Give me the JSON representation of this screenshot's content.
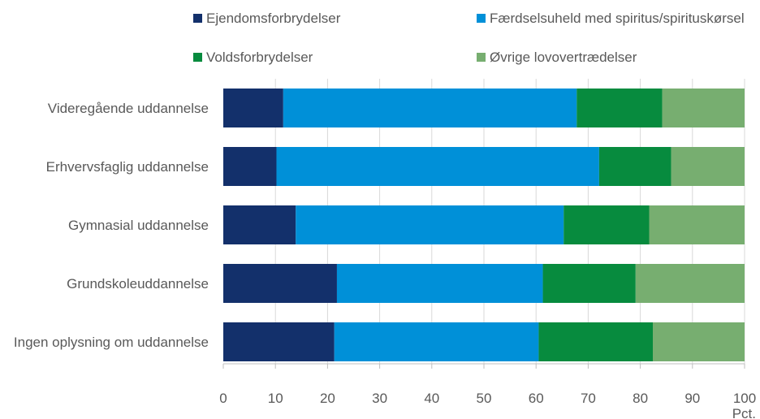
{
  "chart_data": {
    "type": "bar",
    "orientation": "horizontal",
    "stacked": true,
    "categories": [
      "Videregående uddannelse",
      "Erhvervsfaglig uddannelse",
      "Gymnasial uddannelse",
      "Grundskoleuddannelse",
      "Ingen oplysning om uddannelse"
    ],
    "series": [
      {
        "name": "Ejendomsforbrydelser",
        "color": "#13306b",
        "values": [
          11.5,
          10.2,
          13.9,
          21.8,
          21.3
        ]
      },
      {
        "name": "Færdselsuheld med spiritus/spirituskørsel",
        "color": "#0090d8",
        "values": [
          56.3,
          61.9,
          51.4,
          39.5,
          39.2
        ]
      },
      {
        "name": "Voldsforbrydelser",
        "color": "#078b3e",
        "values": [
          16.4,
          13.8,
          16.4,
          17.8,
          21.9
        ]
      },
      {
        "name": "Øvrige lovovertrædelser",
        "color": "#77ae70",
        "values": [
          15.8,
          14.1,
          18.3,
          20.9,
          17.6
        ]
      }
    ],
    "xlim": [
      0,
      100
    ],
    "xticks": [
      0,
      10,
      20,
      30,
      40,
      50,
      60,
      70,
      80,
      90,
      100
    ],
    "xunit": "Pct.",
    "legend_position": "top",
    "grid": "vertical"
  }
}
